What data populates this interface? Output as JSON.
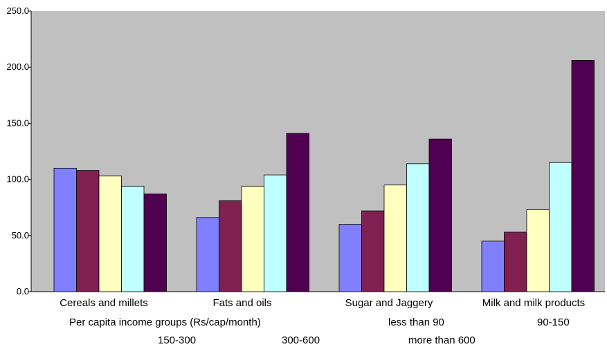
{
  "chart_data": {
    "type": "bar",
    "categories": [
      "Cereals and millets",
      "Fats and oils",
      "Sugar and Jaggery",
      "Milk and milk products"
    ],
    "series": [
      {
        "name": "less than 90",
        "color": "#8080ff",
        "values": [
          110,
          66,
          60,
          45
        ]
      },
      {
        "name": "90-150",
        "color": "#802050",
        "values": [
          108,
          81,
          72,
          53
        ]
      },
      {
        "name": "150-300",
        "color": "#ffffc0",
        "values": [
          103,
          94,
          95,
          73
        ]
      },
      {
        "name": "300-600",
        "color": "#c0ffff",
        "values": [
          94,
          104,
          114,
          115
        ]
      },
      {
        "name": "more than 600",
        "color": "#500050",
        "values": [
          87,
          141,
          136,
          206
        ]
      }
    ],
    "legend_title": "Per capita income groups (Rs/cap/month)",
    "yticks": [
      "0.0",
      "50.0",
      "100.0",
      "150.0",
      "200.0",
      "250.0"
    ],
    "ylim": [
      0,
      250
    ],
    "plot_background": "#c0c0c0",
    "grid": false,
    "legend_position": "bottom"
  }
}
